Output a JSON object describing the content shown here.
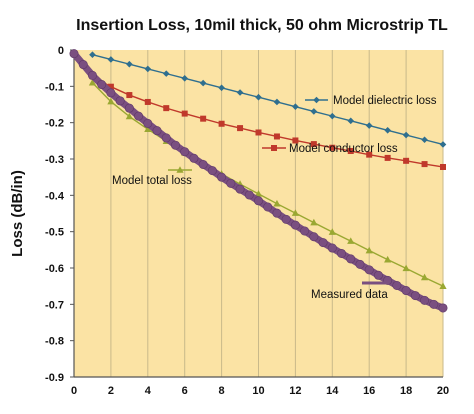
{
  "chart_data": {
    "type": "line",
    "title": "Insertion Loss, 10mil thick, 50 ohm Microstrip TL",
    "xlabel": "",
    "ylabel": "Loss (dB/in)",
    "xlim": [
      0,
      20
    ],
    "ylim": [
      -0.9,
      0
    ],
    "x_ticks": [
      0,
      2,
      4,
      6,
      8,
      10,
      12,
      14,
      16,
      18,
      20
    ],
    "y_ticks": [
      0,
      -0.1,
      -0.2,
      -0.3,
      -0.4,
      -0.5,
      -0.6,
      -0.7,
      -0.8,
      -0.9
    ],
    "grid": "vertical",
    "background_color": "#fbe3a4",
    "series": [
      {
        "name": "Model dielectric loss",
        "color": "#2f6f8f",
        "marker": "diamond",
        "x": [
          1,
          2,
          3,
          4,
          5,
          6,
          7,
          8,
          9,
          10,
          11,
          12,
          13,
          14,
          15,
          16,
          17,
          18,
          19,
          20
        ],
        "y": [
          -0.013,
          -0.026,
          -0.039,
          -0.052,
          -0.065,
          -0.078,
          -0.091,
          -0.104,
          -0.117,
          -0.13,
          -0.143,
          -0.156,
          -0.169,
          -0.182,
          -0.195,
          -0.208,
          -0.221,
          -0.234,
          -0.247,
          -0.26
        ]
      },
      {
        "name": "Model conductor loss",
        "color": "#c0392b",
        "marker": "square",
        "x": [
          1,
          2,
          3,
          4,
          5,
          6,
          7,
          8,
          9,
          10,
          11,
          12,
          13,
          14,
          15,
          16,
          17,
          18,
          19,
          20
        ],
        "y": [
          -0.072,
          -0.101,
          -0.124,
          -0.143,
          -0.16,
          -0.175,
          -0.189,
          -0.203,
          -0.215,
          -0.227,
          -0.238,
          -0.249,
          -0.259,
          -0.269,
          -0.278,
          -0.288,
          -0.297,
          -0.305,
          -0.314,
          -0.322
        ]
      },
      {
        "name": "Model total loss",
        "color": "#9aa832",
        "marker": "triangle",
        "x": [
          1,
          2,
          3,
          4,
          5,
          6,
          7,
          8,
          9,
          10,
          11,
          12,
          13,
          14,
          15,
          16,
          17,
          18,
          19,
          20
        ],
        "y": [
          -0.09,
          -0.142,
          -0.183,
          -0.218,
          -0.251,
          -0.283,
          -0.312,
          -0.341,
          -0.369,
          -0.396,
          -0.423,
          -0.449,
          -0.475,
          -0.501,
          -0.526,
          -0.552,
          -0.577,
          -0.601,
          -0.626,
          -0.65
        ]
      },
      {
        "name": "Measured data",
        "color": "#7a4f80",
        "marker": "circle",
        "x": [
          0,
          0.5,
          1,
          1.5,
          2,
          2.5,
          3,
          3.5,
          4,
          4.5,
          5,
          5.5,
          6,
          6.5,
          7,
          7.5,
          8,
          8.5,
          9,
          9.5,
          10,
          10.5,
          11,
          11.5,
          12,
          12.5,
          13,
          13.5,
          14,
          14.5,
          15,
          15.5,
          16,
          16.5,
          17,
          17.5,
          18,
          18.5,
          19,
          19.5,
          20
        ],
        "y": [
          -0.01,
          -0.04,
          -0.07,
          -0.095,
          -0.118,
          -0.14,
          -0.16,
          -0.182,
          -0.202,
          -0.222,
          -0.242,
          -0.262,
          -0.28,
          -0.298,
          -0.315,
          -0.332,
          -0.35,
          -0.367,
          -0.383,
          -0.399,
          -0.415,
          -0.432,
          -0.449,
          -0.466,
          -0.482,
          -0.498,
          -0.514,
          -0.53,
          -0.545,
          -0.56,
          -0.575,
          -0.59,
          -0.605,
          -0.62,
          -0.634,
          -0.648,
          -0.662,
          -0.676,
          -0.689,
          -0.7,
          -0.71
        ]
      }
    ],
    "annotations": [
      {
        "text": "Model dielectric loss",
        "series": "Model dielectric loss"
      },
      {
        "text": "Model conductor loss",
        "series": "Model conductor loss"
      },
      {
        "text": "Model total loss",
        "series": "Model total loss"
      },
      {
        "text": "Measured data",
        "series": "Measured data"
      }
    ]
  }
}
